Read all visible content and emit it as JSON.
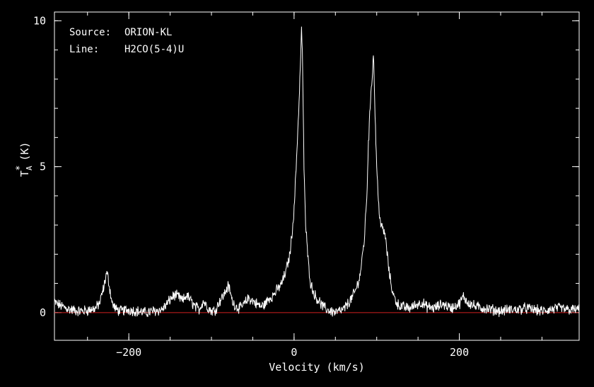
{
  "page": {
    "background": "#000000",
    "foreground": "#ffffff"
  },
  "chart_data": {
    "type": "line",
    "title": "",
    "annotations": [
      {
        "key": "Source:",
        "value": "ORION-KL"
      },
      {
        "key": "Line:",
        "value": "H2CO(5-4)U"
      }
    ],
    "xlabel": "Velocity (km/s)",
    "ylabel": "T",
    "ylabel_sup": "*",
    "ylabel_sub": "A",
    "ylabel_unit": "(K)",
    "xlim": [
      -290,
      345
    ],
    "ylim": [
      -0.95,
      10.3
    ],
    "xticks": [
      -200,
      0,
      200
    ],
    "yticks": [
      0,
      5,
      10
    ],
    "baseline": {
      "y": 0,
      "color": "#d02020"
    },
    "grid": false,
    "legend": "none",
    "series": [
      {
        "color": "#ffffff",
        "x": [
          -290,
          -280,
          -270,
          -260,
          -250,
          -240,
          -235,
          -230,
          -227,
          -225,
          -223,
          -220,
          -215,
          -210,
          -200,
          -190,
          -180,
          -170,
          -160,
          -155,
          -150,
          -145,
          -140,
          -135,
          -130,
          -125,
          -120,
          -115,
          -110,
          -105,
          -100,
          -95,
          -90,
          -85,
          -80,
          -78,
          -75,
          -70,
          -65,
          -60,
          -55,
          -50,
          -45,
          -40,
          -35,
          -30,
          -25,
          -20,
          -15,
          -10,
          -5,
          0,
          3,
          6,
          8,
          9,
          10,
          11,
          12,
          14,
          17,
          20,
          25,
          30,
          35,
          40,
          45,
          50,
          55,
          60,
          65,
          70,
          75,
          80,
          85,
          88,
          90,
          93,
          95,
          96,
          97,
          98,
          100,
          102,
          105,
          108,
          110,
          112,
          115,
          118,
          120,
          125,
          130,
          140,
          150,
          155,
          160,
          170,
          180,
          190,
          200,
          205,
          210,
          220,
          230,
          240,
          250,
          260,
          270,
          280,
          290,
          300,
          310,
          320,
          330,
          345
        ],
        "y": [
          0.35,
          0.2,
          0.1,
          0.05,
          0.08,
          0.15,
          0.35,
          0.9,
          1.35,
          1.2,
          0.8,
          0.3,
          0.1,
          0.05,
          0.1,
          0.05,
          0.0,
          0.05,
          0.1,
          0.25,
          0.45,
          0.6,
          0.55,
          0.4,
          0.6,
          0.4,
          0.2,
          0.1,
          0.4,
          0.2,
          0.05,
          0.1,
          0.4,
          0.6,
          0.9,
          0.8,
          0.4,
          0.2,
          0.15,
          0.3,
          0.5,
          0.4,
          0.3,
          0.2,
          0.3,
          0.5,
          0.6,
          0.8,
          1.0,
          1.4,
          2.0,
          3.5,
          5.3,
          7.2,
          8.8,
          9.7,
          9.0,
          7.0,
          5.0,
          3.0,
          1.8,
          1.0,
          0.6,
          0.4,
          0.2,
          0.1,
          0.05,
          0.0,
          0.05,
          0.1,
          0.3,
          0.5,
          0.8,
          1.3,
          2.5,
          4.0,
          5.8,
          7.6,
          8.3,
          8.9,
          8.0,
          6.8,
          5.0,
          3.8,
          3.0,
          2.8,
          2.7,
          2.2,
          1.4,
          0.9,
          0.6,
          0.3,
          0.2,
          0.15,
          0.3,
          0.35,
          0.2,
          0.15,
          0.3,
          0.15,
          0.3,
          0.55,
          0.35,
          0.2,
          0.15,
          0.1,
          0.05,
          0.1,
          0.1,
          0.15,
          0.1,
          0.05,
          0.1,
          0.15,
          0.1,
          0.1
        ]
      }
    ]
  }
}
